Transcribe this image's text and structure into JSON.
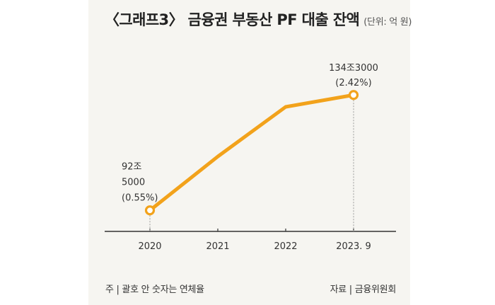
{
  "header": {
    "title": "〈그래프3〉 금융권 부동산 PF 대출 잔액",
    "unit": "(단위: 억 원)"
  },
  "footer": {
    "note": "주 | 괄호 안 숫자는 연체율",
    "source": "자료 | 금융위원회"
  },
  "colors": {
    "line": "#f2a21b",
    "background": "#f6f5f1",
    "axis": "#333333",
    "guide": "#9a9a9a"
  },
  "chart_data": {
    "type": "line",
    "title": "〈그래프3〉 금융권 부동산 PF 대출 잔액",
    "unit": "(단위: 억 원)",
    "xlabel": "",
    "ylabel": "",
    "categories": [
      "2020",
      "2021",
      "2022",
      "2023. 9"
    ],
    "series": [
      {
        "name": "금융권 부동산 PF 대출 잔액",
        "values": [
          925000,
          1120000,
          1300000,
          1343000
        ]
      }
    ],
    "ylim": [
      900000,
      1400000
    ],
    "grid": false,
    "annotations": [
      {
        "category": "2020",
        "lines": [
          "92조",
          "5000",
          "(0.55%)"
        ]
      },
      {
        "category": "2023. 9",
        "lines": [
          "134조3000",
          "(2.42%)"
        ]
      }
    ]
  }
}
